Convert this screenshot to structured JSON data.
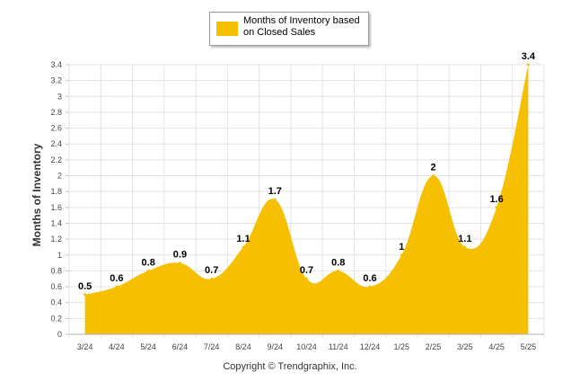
{
  "legend": {
    "label": "Months of Inventory based on Closed Sales"
  },
  "copyright": "Copyright © Trendgraphix, Inc.",
  "chart_data": {
    "type": "area",
    "title": "",
    "xlabel": "",
    "ylabel": "Months of Inventory",
    "ylim": [
      0,
      3.4
    ],
    "yticks": [
      "0",
      "0.2",
      "0.4",
      "0.6",
      "0.8",
      "1",
      "1.2",
      "1.4",
      "1.6",
      "1.8",
      "2",
      "2.2",
      "2.4",
      "2.6",
      "2.8",
      "3",
      "3.2",
      "3.4"
    ],
    "categories": [
      "3/24",
      "4/24",
      "5/24",
      "6/24",
      "7/24",
      "8/24",
      "9/24",
      "10/24",
      "11/24",
      "12/24",
      "1/25",
      "2/25",
      "3/25",
      "4/25",
      "5/25"
    ],
    "series": [
      {
        "name": "Months of Inventory based on Closed Sales",
        "color": "#f6c000",
        "values": [
          0.5,
          0.6,
          0.8,
          0.9,
          0.7,
          1.1,
          1.7,
          0.7,
          0.8,
          0.6,
          1,
          2,
          1.1,
          1.6,
          3.4
        ],
        "labels": [
          "0.5",
          "0.6",
          "0.8",
          "0.9",
          "0.7",
          "1.1",
          "1.7",
          "0.7",
          "0.8",
          "0.6",
          "1",
          "2",
          "1.1",
          "1.6",
          "3.4"
        ]
      }
    ],
    "grid": true,
    "legend_position": "top"
  }
}
